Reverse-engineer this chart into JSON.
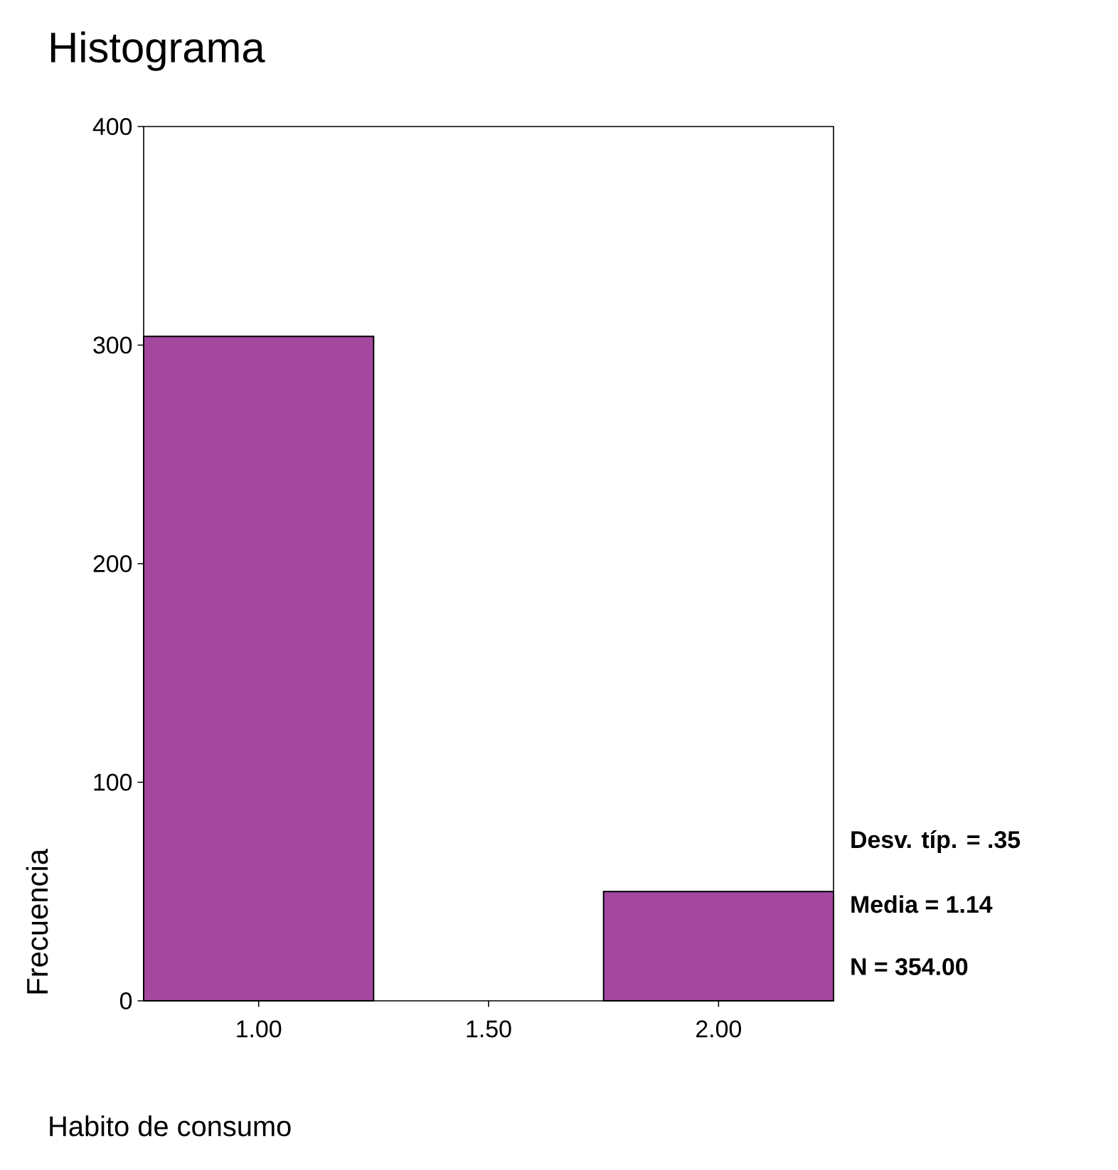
{
  "chart_data": {
    "type": "histogram",
    "title": "Histograma",
    "xlabel": "Habito de consumo",
    "ylabel": "Frecuencia",
    "bins": [
      0.75,
      1.25,
      1.75,
      2.25
    ],
    "values": [
      304,
      0,
      50
    ],
    "color": "#a3489e",
    "xlim": [
      0.75,
      2.25
    ],
    "xticks": [
      {
        "value": 1,
        "label": "1.00"
      },
      {
        "value": 1.5,
        "label": "1.50"
      },
      {
        "value": 2,
        "label": "2.00"
      }
    ],
    "ylim": [
      0,
      400
    ],
    "yticks": [
      0,
      100,
      200,
      300,
      400
    ],
    "annotations": [
      "Desv. típ. = .35",
      "Media = 1.14",
      "N = 354.00"
    ]
  }
}
